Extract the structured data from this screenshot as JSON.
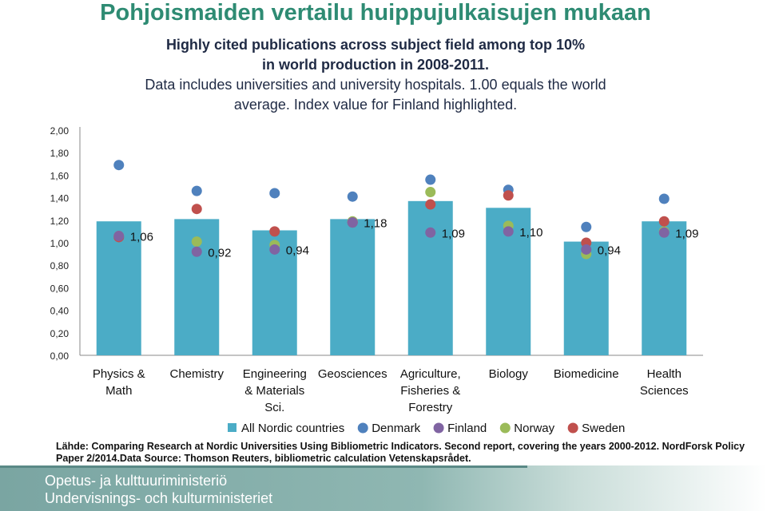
{
  "header": {
    "title": "Pohjoismaiden vertailu huippujulkaisujen mukaan",
    "subtitle_lines": [
      "Highly cited publications across subject field among top 10%",
      "in world production in 2008-2011.",
      "Data includes universities and university hospitals. 1.00 equals the world",
      "average. Index value for Finland highlighted."
    ]
  },
  "chart_data": {
    "type": "bar",
    "categories": [
      [
        "Physics &",
        "Math"
      ],
      [
        "Chemistry"
      ],
      [
        "Engineering",
        "& Materials",
        "Sci."
      ],
      [
        "Geosciences"
      ],
      [
        "Agriculture,",
        "Fisheries &",
        "Forestry"
      ],
      [
        "Biology"
      ],
      [
        "Biomedicine"
      ],
      [
        "Health",
        "Sciences"
      ]
    ],
    "ylim": [
      0,
      2
    ],
    "yticks": [
      "0,00",
      "0,20",
      "0,40",
      "0,60",
      "0,80",
      "1,00",
      "1,20",
      "1,40",
      "1,60",
      "1,80",
      "2,00"
    ],
    "grid": false,
    "legend_position": "bottom",
    "series": [
      {
        "name": "All Nordic countries",
        "kind": "bar",
        "color": "#4bacc6",
        "values": [
          1.19,
          1.21,
          1.11,
          1.21,
          1.37,
          1.31,
          1.01,
          1.19
        ]
      },
      {
        "name": "Denmark",
        "kind": "marker",
        "color": "#4f81bd",
        "values": [
          1.69,
          1.46,
          1.44,
          1.41,
          1.56,
          1.47,
          1.14,
          1.39
        ]
      },
      {
        "name": "Finland",
        "kind": "marker",
        "color": "#8064a2",
        "values": [
          1.06,
          0.92,
          0.94,
          1.18,
          1.09,
          1.1,
          0.94,
          1.09
        ],
        "labels": [
          "1,06",
          "0,92",
          "0,94",
          "1,18",
          "1,09",
          "1,10",
          "0,94",
          "1,09"
        ]
      },
      {
        "name": "Norway",
        "kind": "marker",
        "color": "#9bbb59",
        "values": [
          1.06,
          1.01,
          0.98,
          1.19,
          1.45,
          1.15,
          0.9,
          1.1
        ]
      },
      {
        "name": "Sweden",
        "kind": "marker",
        "color": "#c0504d",
        "values": [
          1.05,
          1.3,
          1.1,
          1.18,
          1.34,
          1.42,
          1.0,
          1.19
        ]
      }
    ]
  },
  "source_text": "Lähde: Comparing Research at Nordic Universities Using Bibliometric Indicators. Second report, covering the years 2000-2012. NordForsk Policy Paper 2/2014.Data Source: Thomson Reuters, bibliometric calculation Vetenskapsrådet.",
  "footer": {
    "org_fi": "Opetus- ja kulttuuriministeriö",
    "org_sv": "Undervisnings- och kulturministeriet"
  }
}
